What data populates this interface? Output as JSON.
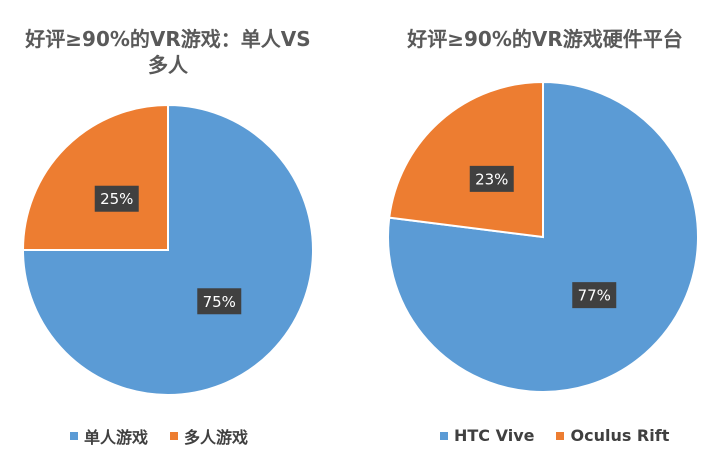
{
  "chart_data": [
    {
      "type": "pie",
      "title": "好评≥90%的VR游戏：单人VS多人",
      "categories": [
        "单人游戏",
        "多人游戏"
      ],
      "values": [
        75,
        25
      ],
      "value_labels": [
        "75%",
        "25%"
      ],
      "colors": [
        "#5b9bd5",
        "#ed7d31"
      ],
      "legend": "bottom"
    },
    {
      "type": "pie",
      "title": "好评≥90%的VR游戏硬件平台",
      "categories": [
        "HTC Vive",
        "Oculus Rift"
      ],
      "values": [
        77,
        23
      ],
      "value_labels": [
        "77%",
        "23%"
      ],
      "colors": [
        "#5b9bd5",
        "#ed7d31"
      ],
      "legend": "bottom"
    }
  ]
}
